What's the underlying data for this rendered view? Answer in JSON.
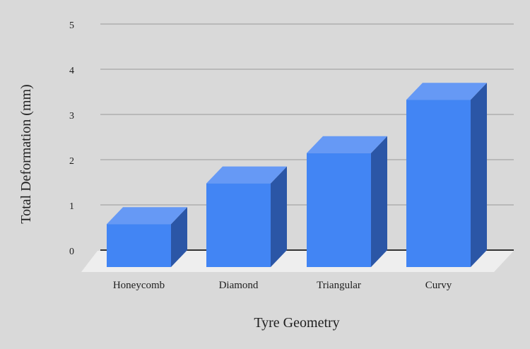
{
  "chart_data": {
    "type": "bar",
    "categories": [
      "Honeycomb",
      "Diamond",
      "Triangular",
      "Curvy"
    ],
    "series": [
      {
        "values": [
          0.95,
          1.85,
          2.52,
          3.7
        ]
      }
    ],
    "title": "",
    "xlabel": "Tyre Geometry",
    "ylabel": "Total Deformation (mm)",
    "ylim": [
      0,
      5
    ],
    "yticks": [
      "0",
      "1",
      "2",
      "3",
      "4",
      "5"
    ],
    "grid": true,
    "legend": "none",
    "style": "3d",
    "colors": {
      "bar_front": "#4285f4",
      "bar_top": "#6699f5",
      "bar_side": "#2b56a6",
      "background": "#d9d9d9",
      "floor": "#eeeeee",
      "grid": "#a6a6a6",
      "baseline": "#333333"
    }
  }
}
